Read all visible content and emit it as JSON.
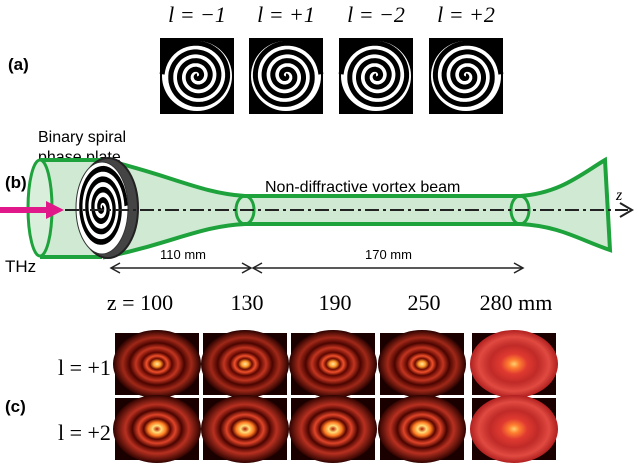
{
  "panel_a": {
    "label": "(a)",
    "plates": [
      "l = −1",
      "l = +1",
      "l = −2",
      "l = +2"
    ]
  },
  "panel_b": {
    "label": "(b)",
    "plate_label": [
      "Binary spiral",
      "phase plate"
    ],
    "beam_label": "Non-diffractive vortex beam",
    "axis_label": "z",
    "source": "THz",
    "distances": [
      "110 mm",
      "170 mm"
    ]
  },
  "panel_c": {
    "label": "(c)",
    "positions": [
      "z = 100",
      "130",
      "190",
      "250",
      "280 mm"
    ],
    "rows": [
      "l = +1",
      "l = +2"
    ]
  }
}
